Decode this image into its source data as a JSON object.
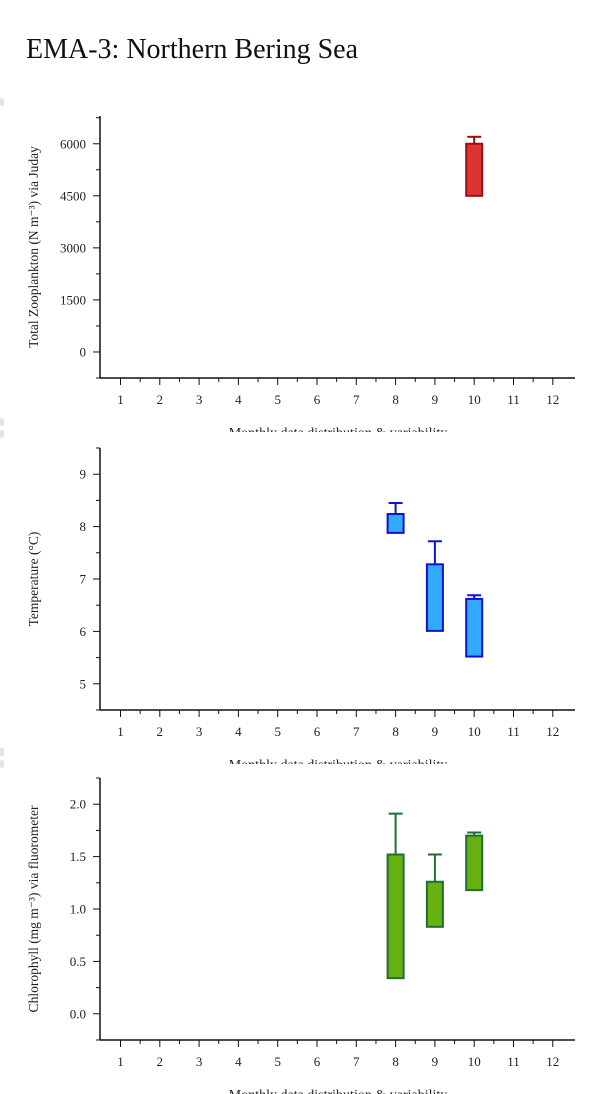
{
  "page": {
    "title": "EMA-3: Northern Bering Sea"
  },
  "chart_data": [
    {
      "type": "box",
      "ylabel": "Total Zooplankton (N m⁻³) via Juday",
      "xlabel": "Monthly data distribution & variability",
      "categories": [
        "1",
        "2",
        "3",
        "4",
        "5",
        "6",
        "7",
        "8",
        "9",
        "10",
        "11",
        "12"
      ],
      "yticks": [
        0,
        1500,
        3000,
        4500,
        6000
      ],
      "ylim": [
        -750,
        6800
      ],
      "fill": "#dd3333",
      "stroke": "#991111",
      "boxes": [
        {
          "month": "10",
          "low": 4500,
          "high": 6000,
          "whisker_low": 4500,
          "whisker_high": 6200
        }
      ]
    },
    {
      "type": "box",
      "ylabel": "Temperature (°C)",
      "xlabel": "Monthly data distribution & variability",
      "categories": [
        "1",
        "2",
        "3",
        "4",
        "5",
        "6",
        "7",
        "8",
        "9",
        "10",
        "11",
        "12"
      ],
      "yticks": [
        5,
        6,
        7,
        8,
        9
      ],
      "ylim": [
        4.5,
        9.5
      ],
      "fill": "#33aaff",
      "stroke": "#1111cc",
      "boxes": [
        {
          "month": "8",
          "low": 7.88,
          "high": 8.24,
          "whisker_low": 7.88,
          "whisker_high": 8.45
        },
        {
          "month": "9",
          "low": 6.01,
          "high": 7.28,
          "whisker_low": 6.01,
          "whisker_high": 7.72
        },
        {
          "month": "10",
          "low": 5.52,
          "high": 6.62,
          "whisker_low": 5.52,
          "whisker_high": 6.69
        }
      ]
    },
    {
      "type": "box",
      "ylabel": "Chlorophyll (mg m⁻³) via fluorometer",
      "xlabel": "Monthly data distribution & variability",
      "categories": [
        "1",
        "2",
        "3",
        "4",
        "5",
        "6",
        "7",
        "8",
        "9",
        "10",
        "11",
        "12"
      ],
      "yticks": [
        0.0,
        0.5,
        1.0,
        1.5,
        2.0
      ],
      "ytick_labels": [
        "0.0",
        "0.5",
        "1.0",
        "1.5",
        "2.0"
      ],
      "ylim": [
        -0.25,
        2.25
      ],
      "fill": "#66b010",
      "stroke": "#1e6e3a",
      "boxes": [
        {
          "month": "8",
          "low": 0.34,
          "high": 1.52,
          "whisker_low": 0.34,
          "whisker_high": 1.91
        },
        {
          "month": "9",
          "low": 0.83,
          "high": 1.26,
          "whisker_low": 0.83,
          "whisker_high": 1.52
        },
        {
          "month": "10",
          "low": 1.18,
          "high": 1.7,
          "whisker_low": 1.18,
          "whisker_high": 1.73
        }
      ]
    }
  ]
}
